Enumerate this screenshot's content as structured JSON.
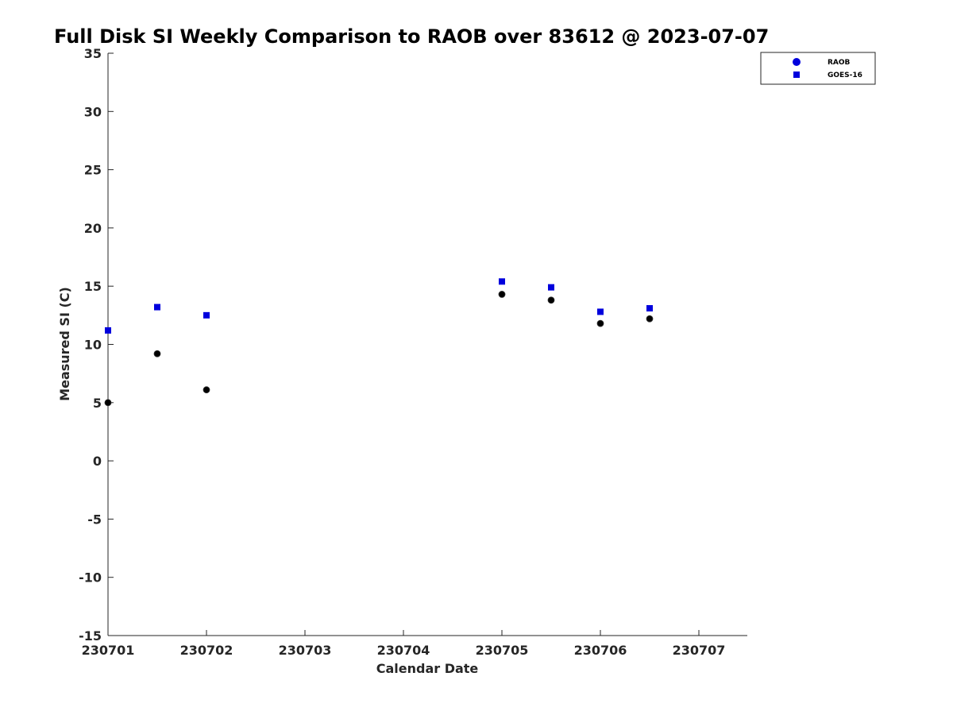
{
  "chart_data": {
    "type": "scatter",
    "title": "Full Disk SI Weekly Comparison to RAOB over 83612 @ 2023-07-07",
    "xlabel": "Calendar Date",
    "ylabel": "Measured SI (C)",
    "xlim": [
      0,
      6.5
    ],
    "ylim": [
      -15,
      35
    ],
    "x_ticks": [
      {
        "value": 0,
        "label": "230701"
      },
      {
        "value": 1,
        "label": "230702"
      },
      {
        "value": 2,
        "label": "230703"
      },
      {
        "value": 3,
        "label": "230704"
      },
      {
        "value": 4,
        "label": "230705"
      },
      {
        "value": 5,
        "label": "230706"
      },
      {
        "value": 6,
        "label": "230707"
      }
    ],
    "y_ticks": [
      {
        "value": 35,
        "label": "35"
      },
      {
        "value": 30,
        "label": "30"
      },
      {
        "value": 25,
        "label": "25"
      },
      {
        "value": 20,
        "label": "20"
      },
      {
        "value": 15,
        "label": "15"
      },
      {
        "value": 10,
        "label": "10"
      },
      {
        "value": 5,
        "label": "5"
      },
      {
        "value": 0,
        "label": "0"
      },
      {
        "value": -5,
        "label": "-5"
      },
      {
        "value": -10,
        "label": "-10"
      },
      {
        "value": -15,
        "label": "-15"
      }
    ],
    "grid": false,
    "legend_position": "top-right",
    "series": [
      {
        "name": "RAOB",
        "marker": "circle",
        "color": "#000000",
        "legend_color": "#0000dd",
        "points": [
          [
            0,
            5.0
          ],
          [
            0.5,
            9.2
          ],
          [
            1.0,
            6.1
          ],
          [
            4.0,
            14.3
          ],
          [
            4.5,
            13.8
          ],
          [
            5.0,
            11.8
          ],
          [
            5.5,
            12.2
          ]
        ]
      },
      {
        "name": "GOES-16",
        "marker": "square",
        "color": "#0000dd",
        "legend_color": "#0000dd",
        "points": [
          [
            0,
            11.2
          ],
          [
            0.5,
            13.2
          ],
          [
            1.0,
            12.5
          ],
          [
            4.0,
            15.4
          ],
          [
            4.5,
            14.9
          ],
          [
            5.0,
            12.8
          ],
          [
            5.5,
            13.1
          ]
        ]
      }
    ]
  }
}
